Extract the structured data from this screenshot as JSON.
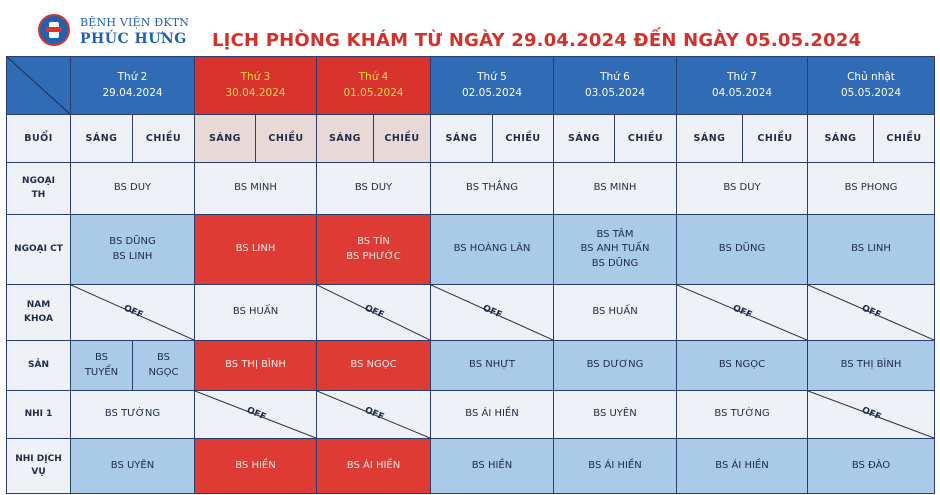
{
  "hospital": {
    "name_top": "BỆNH VIỆN ĐKTN",
    "name_main": "PHÚC HƯNG"
  },
  "title": "LỊCH PHÒNG KHÁM TỪ NGÀY 29.04.2024 ĐẾN NGÀY 05.05.2024",
  "session_label": "BUỔI",
  "morning": "SÁNG",
  "afternoon": "CHIỀU",
  "off": "OFF",
  "days": [
    {
      "name": "Thứ 2",
      "date": "29.04.2024"
    },
    {
      "name": "Thứ 3",
      "date": "30.04.2024"
    },
    {
      "name": "Thứ 4",
      "date": "01.05.2024"
    },
    {
      "name": "Thứ 5",
      "date": "02.05.2024"
    },
    {
      "name": "Thứ 6",
      "date": "03.05.2024"
    },
    {
      "name": "Thứ 7",
      "date": "04.05.2024"
    },
    {
      "name": "Chủ nhật",
      "date": "05.05.2024"
    }
  ],
  "rows": {
    "ngoai_th": {
      "label_1": "NGOẠI",
      "label_2": "TH",
      "d0": "BS DUY",
      "d1": "BS MINH",
      "d2": "BS DUY",
      "d3": "BS THẮNG",
      "d4": "BS MINH",
      "d5": "BS DUY",
      "d6": "BS PHONG"
    },
    "ngoai_ct": {
      "label": "NGOẠI CT",
      "d0_1": "BS DŨNG",
      "d0_2": "BS LINH",
      "d1": "BS LINH",
      "d2_1": "BS TÍN",
      "d2_2": "BS PHƯỚC",
      "d3": "BS HOÀNG LÂN",
      "d4_1": "BS TÂM",
      "d4_2": "BS ANH TUẤN",
      "d4_3": "BS DŨNG",
      "d5": "BS DŨNG",
      "d6": "BS LINH"
    },
    "nam_khoa": {
      "label_1": "NAM",
      "label_2": "KHOA",
      "d1": "BS HUẤN",
      "d4": "BS HUẤN"
    },
    "san": {
      "label": "SẢN",
      "d0m_1": "BS",
      "d0m_2": "TUYỂN",
      "d0a_1": "BS",
      "d0a_2": "NGỌC",
      "d1": "BS THỊ BÌNH",
      "d2": "BS NGỌC",
      "d3": "BS NHỰT",
      "d4": "BS DƯƠNG",
      "d5": "BS NGỌC",
      "d6": "BS THỊ BÌNH"
    },
    "nhi_1": {
      "label": "NHI 1",
      "d0": "BS TƯỜNG",
      "d3": "BS ÁI HIỀN",
      "d4": "BS UYÊN",
      "d5": "BS TƯỜNG"
    },
    "nhi_dv": {
      "label_1": "NHI DỊCH",
      "label_2": "VỤ",
      "d0": "BS UYÊN",
      "d1": "BS HIỀN",
      "d2": "BS ÁI HIỀN",
      "d3": "BS HIỀN",
      "d4": "BS ÁI HIỀN",
      "d5": "BS ÁI HIỀN",
      "d6": "BS ĐÀO"
    }
  },
  "colors": {
    "header_blue": "#2f6cb5",
    "holiday_red": "#d8322c",
    "cell_blue": "#a9cbe8",
    "title_red": "#d5312b"
  }
}
